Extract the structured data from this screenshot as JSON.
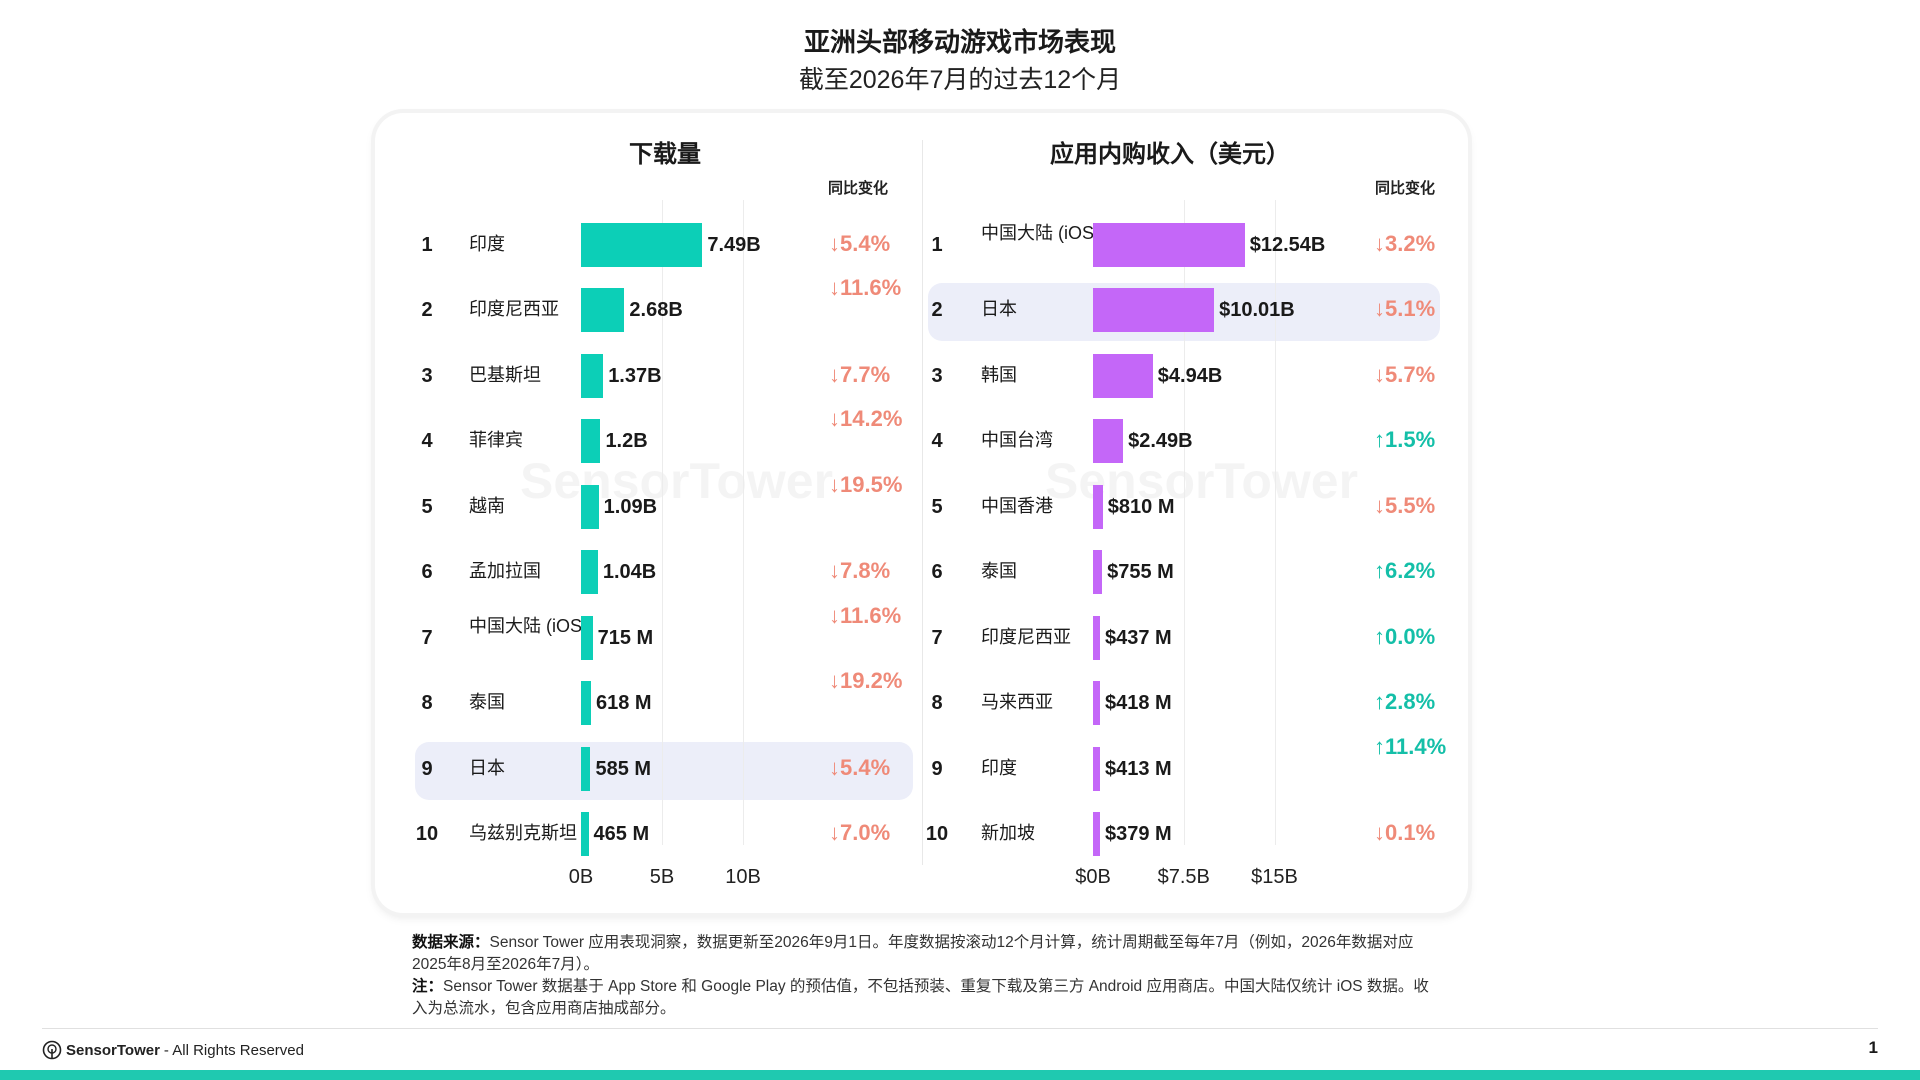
{
  "title": "亚洲头部移动游戏市场表现",
  "subtitle": "截至2026年7月的过去12个月",
  "yoy_header": "同比变化",
  "watermark_text": "SensorTower",
  "chart_data": [
    {
      "type": "bar",
      "orientation": "horizontal",
      "title": "下载量",
      "x_ticks": [
        "0B",
        "5B",
        "10B"
      ],
      "xlim": [
        0,
        10
      ],
      "unit": "B",
      "highlight_rank": 9,
      "bar_color": "#0ccfb7",
      "rows": [
        {
          "rank": "1",
          "country": "印度",
          "value": 7.49,
          "label": "7.49B",
          "change": "↓5.4%",
          "dir": "down"
        },
        {
          "rank": "2",
          "country": "印度尼西亚",
          "value": 2.68,
          "label": "2.68B",
          "change": "↓11.6%",
          "dir": "down"
        },
        {
          "rank": "3",
          "country": "巴基斯坦",
          "value": 1.37,
          "label": "1.37B",
          "change": "↓7.7%",
          "dir": "down"
        },
        {
          "rank": "4",
          "country": "菲律宾",
          "value": 1.2,
          "label": "1.2B",
          "change": "↓14.2%",
          "dir": "down"
        },
        {
          "rank": "5",
          "country": "越南",
          "value": 1.09,
          "label": "1.09B",
          "change": "↓19.5%",
          "dir": "down"
        },
        {
          "rank": "6",
          "country": "孟加拉国",
          "value": 1.04,
          "label": "1.04B",
          "change": "↓7.8%",
          "dir": "down"
        },
        {
          "rank": "7",
          "country": "中国大陆 (iOS)",
          "value": 0.715,
          "label": "715 M",
          "change": "↓11.6%",
          "dir": "down"
        },
        {
          "rank": "8",
          "country": "泰国",
          "value": 0.618,
          "label": "618 M",
          "change": "↓19.2%",
          "dir": "down"
        },
        {
          "rank": "9",
          "country": "日本",
          "value": 0.585,
          "label": "585 M",
          "change": "↓5.4%",
          "dir": "down"
        },
        {
          "rank": "10",
          "country": "乌兹别克斯坦",
          "value": 0.465,
          "label": "465 M",
          "change": "↓7.0%",
          "dir": "down"
        }
      ]
    },
    {
      "type": "bar",
      "orientation": "horizontal",
      "title": "应用内购收入（美元）",
      "x_ticks": [
        "$0B",
        "$7.5B",
        "$15B"
      ],
      "xlim": [
        0,
        15
      ],
      "unit": "$B",
      "highlight_rank": 2,
      "bar_color": "#c467f8",
      "rows": [
        {
          "rank": "1",
          "country": "中国大陆 (iOS)",
          "value": 12.54,
          "label": "$12.54B",
          "change": "↓3.2%",
          "dir": "down"
        },
        {
          "rank": "2",
          "country": "日本",
          "value": 10.01,
          "label": "$10.01B",
          "change": "↓5.1%",
          "dir": "down"
        },
        {
          "rank": "3",
          "country": "韩国",
          "value": 4.94,
          "label": "$4.94B",
          "change": "↓5.7%",
          "dir": "down"
        },
        {
          "rank": "4",
          "country": "中国台湾",
          "value": 2.49,
          "label": "$2.49B",
          "change": "↑1.5%",
          "dir": "up"
        },
        {
          "rank": "5",
          "country": "中国香港",
          "value": 0.81,
          "label": "$810 M",
          "change": "↓5.5%",
          "dir": "down"
        },
        {
          "rank": "6",
          "country": "泰国",
          "value": 0.755,
          "label": "$755 M",
          "change": "↑6.2%",
          "dir": "up"
        },
        {
          "rank": "7",
          "country": "印度尼西亚",
          "value": 0.437,
          "label": "$437 M",
          "change": "↑0.0%",
          "dir": "up"
        },
        {
          "rank": "8",
          "country": "马来西亚",
          "value": 0.418,
          "label": "$418 M",
          "change": "↑2.8%",
          "dir": "up"
        },
        {
          "rank": "9",
          "country": "印度",
          "value": 0.413,
          "label": "$413 M",
          "change": "↑11.4%",
          "dir": "up"
        },
        {
          "rank": "10",
          "country": "新加坡",
          "value": 0.379,
          "label": "$379 M",
          "change": "↓0.1%",
          "dir": "down"
        }
      ]
    }
  ],
  "notes": {
    "source_label": "数据来源：",
    "source_text": "Sensor Tower 应用表现洞察，数据更新至2026年9月1日。年度数据按滚动12个月计算，统计周期截至每年7月（例如，2026年数据对应2025年8月至2026年7月）。",
    "note_label": "注：",
    "note_text": "Sensor Tower 数据基于 App Store 和 Google Play 的预估值，不包括预装、重复下载及第三方 Android 应用商店。中国大陆仅统计 iOS 数据。收入为总流水，包含应用商店抽成部分。"
  },
  "footer": {
    "brand": "SensorTower",
    "rights": " - All Rights Reserved",
    "page": "1"
  }
}
